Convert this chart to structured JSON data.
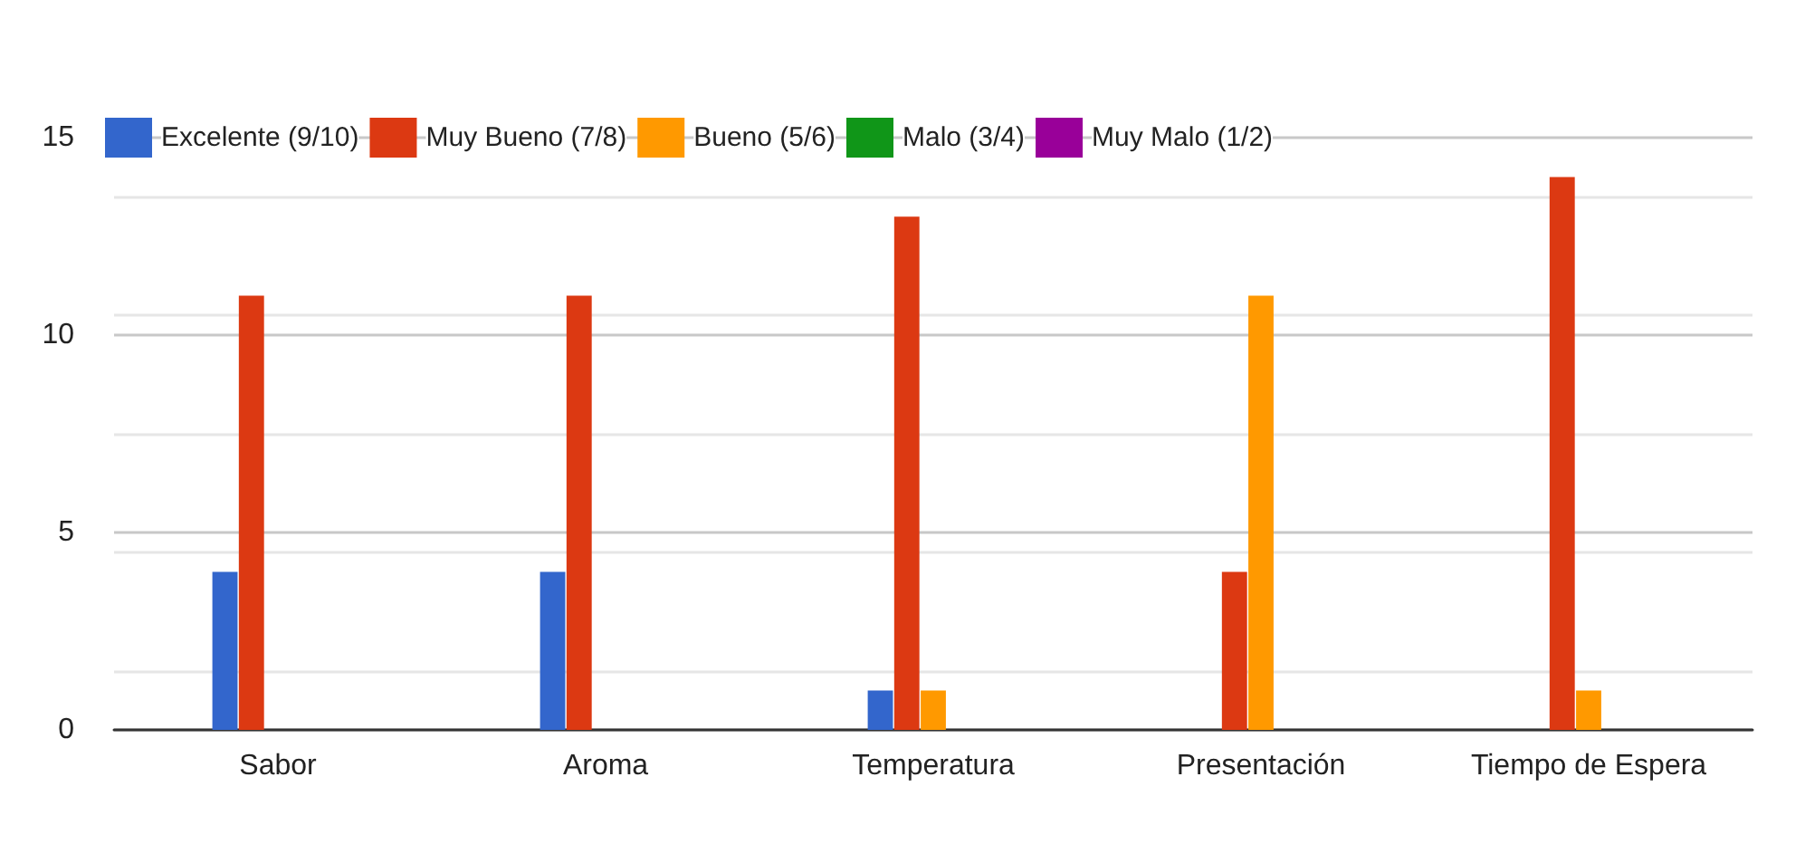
{
  "chart_data": {
    "type": "bar",
    "categories": [
      "Sabor",
      "Aroma",
      "Temperatura",
      "Presentación",
      "Tiempo de Espera"
    ],
    "series": [
      {
        "name": "Excelente (9/10)",
        "color": "#3366cc",
        "values": [
          4,
          4,
          1,
          0,
          0
        ]
      },
      {
        "name": "Muy Bueno (7/8)",
        "color": "#dc3912",
        "values": [
          11,
          11,
          13,
          4,
          14
        ]
      },
      {
        "name": "Bueno (5/6)",
        "color": "#ff9900",
        "values": [
          0,
          0,
          1,
          11,
          1
        ]
      },
      {
        "name": "Malo (3/4)",
        "color": "#109618",
        "values": [
          0,
          0,
          0,
          0,
          0
        ]
      },
      {
        "name": "Muy Malo (1/2)",
        "color": "#990099",
        "values": [
          0,
          0,
          0,
          0,
          0
        ]
      }
    ],
    "ylim": [
      0,
      15
    ],
    "yticks": [
      0,
      5,
      10,
      15
    ],
    "grid": "y",
    "legend": "top"
  }
}
